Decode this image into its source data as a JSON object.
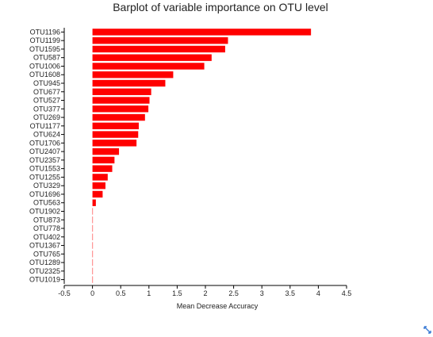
{
  "chart_data": {
    "type": "bar",
    "orientation": "horizontal",
    "title": "Barplot of variable importance on OTU level",
    "xlabel": "Mean Decrease Accuracy",
    "ylabel": "",
    "xlim": [
      -0.5,
      4.5
    ],
    "xticks": [
      "-0.5",
      "0",
      "0.5",
      "1",
      "1.5",
      "2",
      "2.5",
      "3",
      "3.5",
      "4",
      "4.5"
    ],
    "categories": [
      "OTU1196",
      "OTU1199",
      "OTU1595",
      "OTU587",
      "OTU1006",
      "OTU1608",
      "OTU945",
      "OTU677",
      "OTU527",
      "OTU377",
      "OTU269",
      "OTU1177",
      "OTU624",
      "OTU1706",
      "OTU2407",
      "OTU2357",
      "OTU1553",
      "OTU1255",
      "OTU329",
      "OTU1696",
      "OTU563",
      "OTU1902",
      "OTU873",
      "OTU778",
      "OTU402",
      "OTU1367",
      "OTU765",
      "OTU1289",
      "OTU2325",
      "OTU1019"
    ],
    "values": [
      3.87,
      2.4,
      2.35,
      2.11,
      1.98,
      1.43,
      1.29,
      1.04,
      1.01,
      0.99,
      0.93,
      0.82,
      0.81,
      0.78,
      0.47,
      0.39,
      0.35,
      0.27,
      0.23,
      0.18,
      0.06,
      0.0,
      0.0,
      0.0,
      0.0,
      0.0,
      0.0,
      0.0,
      0.0,
      0.0
    ],
    "bar_color": "#ff0000",
    "grid": false,
    "legend": "none"
  },
  "icons": {
    "corner": "expand-icon"
  }
}
